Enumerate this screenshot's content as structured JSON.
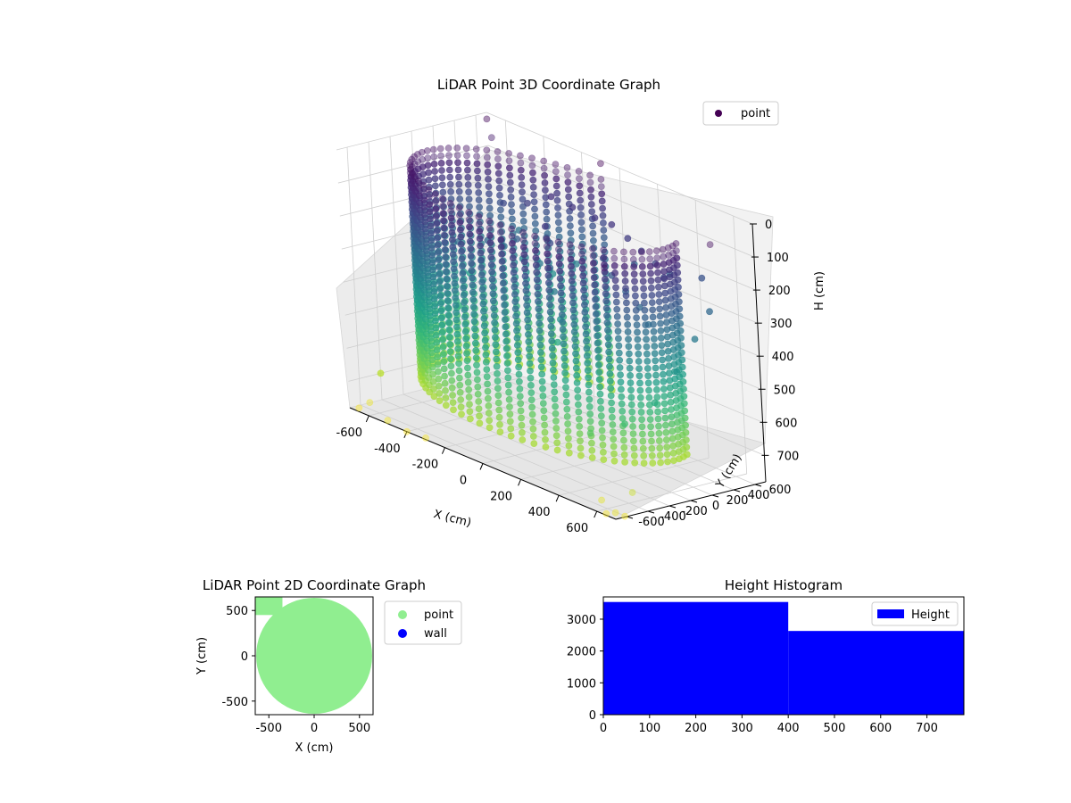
{
  "chart_data": [
    {
      "type": "scatter",
      "projection": "3d",
      "title": "LiDAR Point 3D Coordinate Graph",
      "xlabel": "X (cm)",
      "ylabel": "Y (cm)",
      "zlabel": "H (cm)",
      "xlim": [
        -700,
        700
      ],
      "ylim": [
        -700,
        700
      ],
      "zlim": [
        0,
        780
      ],
      "z_inverted": true,
      "xticks": [
        -600,
        -400,
        -200,
        0,
        200,
        400,
        600
      ],
      "yticks": [
        -600,
        -400,
        -200,
        0,
        200,
        400,
        600
      ],
      "zticks": [
        0,
        100,
        200,
        300,
        400,
        500,
        600,
        700
      ],
      "grid": true,
      "legend": {
        "position": "upper right",
        "entries": [
          {
            "label": "point",
            "color": "#440154"
          }
        ]
      },
      "colormap": "viridis",
      "series": [
        {
          "name": "point",
          "description_points": {
            "wall_arc": {
              "radius": 620,
              "start_deg": 95,
              "end_deg": 375,
              "h_range": [
                40,
                690
              ]
            },
            "tree": [
              [
                -30,
                40,
                130
              ],
              [
                -20,
                60,
                180
              ],
              [
                -10,
                30,
                250
              ],
              [
                0,
                40,
                320
              ],
              [
                20,
                50,
                400
              ],
              [
                10,
                30,
                470
              ]
            ],
            "canopy": [
              [
                -200,
                400,
                110
              ],
              [
                -100,
                420,
                120
              ],
              [
                0,
                450,
                130
              ],
              [
                100,
                430,
                125
              ],
              [
                200,
                400,
                140
              ],
              [
                300,
                350,
                150
              ],
              [
                400,
                300,
                160
              ],
              [
                500,
                200,
                170
              ],
              [
                -300,
                350,
                150
              ],
              [
                -400,
                300,
                170
              ],
              [
                150,
                250,
                200
              ],
              [
                250,
                150,
                220
              ],
              [
                350,
                100,
                240
              ],
              [
                -150,
                250,
                210
              ],
              [
                -250,
                150,
                230
              ],
              [
                450,
                50,
                260
              ],
              [
                550,
                -50,
                280
              ],
              [
                -350,
                50,
                250
              ],
              [
                -450,
                -50,
                270
              ]
            ],
            "scattered": [
              [
                -650,
                500,
                420
              ],
              [
                -600,
                300,
                430
              ],
              [
                -500,
                600,
                300
              ],
              [
                -400,
                450,
                350
              ],
              [
                -550,
                100,
                500
              ],
              [
                -620,
                -100,
                560
              ],
              [
                -300,
                550,
                380
              ],
              [
                -200,
                600,
                330
              ],
              [
                100,
                620,
                260
              ],
              [
                300,
                600,
                240
              ],
              [
                500,
                550,
                200
              ],
              [
                620,
                400,
                260
              ],
              [
                650,
                200,
                320
              ],
              [
                660,
                0,
                400
              ],
              [
                650,
                -200,
                480
              ],
              [
                600,
                -400,
                540
              ],
              [
                500,
                -550,
                580
              ],
              [
                -450,
                350,
                300
              ],
              [
                -350,
                200,
                280
              ],
              [
                -250,
                350,
                320
              ]
            ],
            "far_outliers": [
              [
                -700,
                700,
                20
              ],
              [
                -650,
                650,
                60
              ],
              [
                650,
                -600,
                40
              ],
              [
                -100,
                700,
                10
              ],
              [
                700,
                300,
                30
              ],
              [
                -700,
                -400,
                700
              ],
              [
                -650,
                -600,
                760
              ],
              [
                -500,
                -700,
                770
              ],
              [
                700,
                -700,
                760
              ],
              [
                650,
                -700,
                775
              ],
              [
                720,
                -650,
                770
              ],
              [
                -400,
                -700,
                780
              ],
              [
                -300,
                -700,
                775
              ],
              [
                600,
                -650,
                750
              ],
              [
                680,
                -500,
                720
              ],
              [
                -680,
                -650,
                780
              ]
            ]
          }
        }
      ]
    },
    {
      "type": "scatter",
      "title": "LiDAR Point 2D Coordinate Graph",
      "xlabel": "X (cm)",
      "ylabel": "Y (cm)",
      "xlim": [
        -650,
        650
      ],
      "ylim": [
        -650,
        650
      ],
      "xticks": [
        -500,
        0,
        500
      ],
      "yticks": [
        -500,
        0,
        500
      ],
      "legend": {
        "position": "outside right",
        "entries": [
          {
            "label": "point",
            "color": "#90ee90"
          },
          {
            "label": "wall",
            "color": "#0000ff"
          }
        ]
      },
      "series": [
        {
          "name": "point",
          "color": "#90ee90",
          "shape": "disc",
          "center": [
            0,
            0
          ],
          "radius": 640,
          "x_range": [
            -650,
            650
          ],
          "y_range": [
            -650,
            650
          ]
        },
        {
          "name": "wall",
          "color": "#0000ff",
          "values": []
        }
      ]
    },
    {
      "type": "bar",
      "subtype": "histogram",
      "title": "Height Histogram",
      "xlim": [
        0,
        780
      ],
      "ylim": [
        0,
        3700
      ],
      "xticks": [
        0,
        100,
        200,
        300,
        400,
        500,
        600,
        700
      ],
      "yticks": [
        0,
        1000,
        2000,
        3000
      ],
      "legend": {
        "position": "upper right",
        "entries": [
          {
            "label": "Height",
            "color": "#0000ff"
          }
        ]
      },
      "series": [
        {
          "name": "Height",
          "color": "#0000ff",
          "bins": [
            {
              "start": 0,
              "end": 400,
              "count": 3540
            },
            {
              "start": 400,
              "end": 780,
              "count": 2630
            }
          ]
        }
      ]
    }
  ]
}
